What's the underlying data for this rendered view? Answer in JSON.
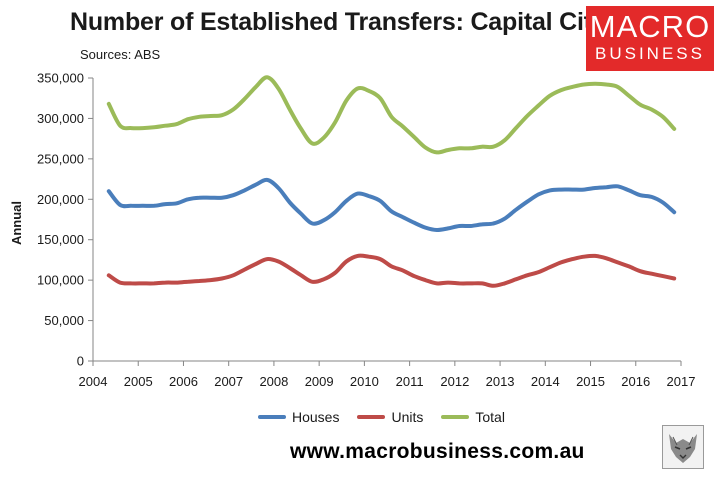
{
  "header": {
    "title": "Number of Established Transfers: Capital Cities",
    "subtitle": "Sources: ABS"
  },
  "logo": {
    "line1": "MACRO",
    "line2": "BUSINESS",
    "color": "#e32a2a"
  },
  "footer": {
    "website": "www.macrobusiness.com.au"
  },
  "chart_data": {
    "type": "line",
    "title": "Number of Established Transfers: Capital Cities",
    "subtitle": "Sources: ABS",
    "xlabel": "",
    "ylabel": "Annual",
    "xlim": [
      2004,
      2017
    ],
    "ylim": [
      0,
      350000
    ],
    "x_ticks": [
      "2004",
      "2005",
      "2006",
      "2007",
      "2008",
      "2009",
      "2010",
      "2011",
      "2012",
      "2013",
      "2014",
      "2015",
      "2016",
      "2017"
    ],
    "y_ticks": [
      "0",
      "50,000",
      "100,000",
      "150,000",
      "200,000",
      "250,000",
      "300,000",
      "350,000"
    ],
    "grid": false,
    "legend_position": "bottom",
    "series": [
      {
        "name": "Houses",
        "color": "#4a7ebb",
        "points": [
          [
            2004.35,
            210000
          ],
          [
            2004.6,
            193000
          ],
          [
            2004.85,
            192000
          ],
          [
            2005.1,
            192000
          ],
          [
            2005.35,
            192000
          ],
          [
            2005.6,
            194000
          ],
          [
            2005.85,
            195000
          ],
          [
            2006.1,
            200000
          ],
          [
            2006.35,
            202000
          ],
          [
            2006.6,
            202000
          ],
          [
            2006.85,
            202000
          ],
          [
            2007.1,
            205000
          ],
          [
            2007.35,
            211000
          ],
          [
            2007.6,
            218000
          ],
          [
            2007.85,
            224000
          ],
          [
            2008.1,
            214000
          ],
          [
            2008.35,
            196000
          ],
          [
            2008.6,
            182000
          ],
          [
            2008.85,
            170000
          ],
          [
            2009.1,
            174000
          ],
          [
            2009.35,
            184000
          ],
          [
            2009.6,
            198000
          ],
          [
            2009.85,
            207000
          ],
          [
            2010.1,
            204000
          ],
          [
            2010.35,
            198000
          ],
          [
            2010.6,
            185000
          ],
          [
            2010.85,
            178000
          ],
          [
            2011.1,
            171000
          ],
          [
            2011.35,
            165000
          ],
          [
            2011.6,
            162000
          ],
          [
            2011.85,
            164000
          ],
          [
            2012.1,
            167000
          ],
          [
            2012.35,
            167000
          ],
          [
            2012.6,
            169000
          ],
          [
            2012.85,
            170000
          ],
          [
            2013.1,
            176000
          ],
          [
            2013.35,
            187000
          ],
          [
            2013.6,
            197000
          ],
          [
            2013.85,
            206000
          ],
          [
            2014.1,
            211000
          ],
          [
            2014.35,
            212000
          ],
          [
            2014.6,
            212000
          ],
          [
            2014.85,
            212000
          ],
          [
            2015.1,
            214000
          ],
          [
            2015.35,
            215000
          ],
          [
            2015.6,
            216000
          ],
          [
            2015.85,
            211000
          ],
          [
            2016.1,
            205000
          ],
          [
            2016.35,
            203000
          ],
          [
            2016.6,
            196000
          ],
          [
            2016.85,
            184000
          ]
        ]
      },
      {
        "name": "Units",
        "color": "#be4b48",
        "points": [
          [
            2004.35,
            106000
          ],
          [
            2004.6,
            97000
          ],
          [
            2004.85,
            96000
          ],
          [
            2005.1,
            96000
          ],
          [
            2005.35,
            96000
          ],
          [
            2005.6,
            97000
          ],
          [
            2005.85,
            97000
          ],
          [
            2006.1,
            98000
          ],
          [
            2006.35,
            99000
          ],
          [
            2006.6,
            100000
          ],
          [
            2006.85,
            102000
          ],
          [
            2007.1,
            106000
          ],
          [
            2007.35,
            113000
          ],
          [
            2007.6,
            120000
          ],
          [
            2007.85,
            126000
          ],
          [
            2008.1,
            123000
          ],
          [
            2008.35,
            115000
          ],
          [
            2008.6,
            106000
          ],
          [
            2008.85,
            98000
          ],
          [
            2009.1,
            101000
          ],
          [
            2009.35,
            109000
          ],
          [
            2009.6,
            123000
          ],
          [
            2009.85,
            130000
          ],
          [
            2010.1,
            129000
          ],
          [
            2010.35,
            126000
          ],
          [
            2010.6,
            117000
          ],
          [
            2010.85,
            112000
          ],
          [
            2011.1,
            105000
          ],
          [
            2011.35,
            100000
          ],
          [
            2011.6,
            96000
          ],
          [
            2011.85,
            97000
          ],
          [
            2012.1,
            96000
          ],
          [
            2012.35,
            96000
          ],
          [
            2012.6,
            96000
          ],
          [
            2012.85,
            93000
          ],
          [
            2013.1,
            96000
          ],
          [
            2013.35,
            101000
          ],
          [
            2013.6,
            106000
          ],
          [
            2013.85,
            110000
          ],
          [
            2014.1,
            116000
          ],
          [
            2014.35,
            122000
          ],
          [
            2014.6,
            126000
          ],
          [
            2014.85,
            129000
          ],
          [
            2015.1,
            130000
          ],
          [
            2015.35,
            127000
          ],
          [
            2015.6,
            122000
          ],
          [
            2015.85,
            117000
          ],
          [
            2016.1,
            111000
          ],
          [
            2016.35,
            108000
          ],
          [
            2016.6,
            105000
          ],
          [
            2016.85,
            102000
          ]
        ]
      },
      {
        "name": "Total",
        "color": "#9bbb59",
        "points": [
          [
            2004.35,
            318000
          ],
          [
            2004.6,
            291000
          ],
          [
            2004.85,
            288000
          ],
          [
            2005.1,
            288000
          ],
          [
            2005.35,
            289000
          ],
          [
            2005.6,
            291000
          ],
          [
            2005.85,
            293000
          ],
          [
            2006.1,
            299000
          ],
          [
            2006.35,
            302000
          ],
          [
            2006.6,
            303000
          ],
          [
            2006.85,
            304000
          ],
          [
            2007.1,
            311000
          ],
          [
            2007.35,
            324000
          ],
          [
            2007.6,
            339000
          ],
          [
            2007.85,
            351000
          ],
          [
            2008.1,
            337000
          ],
          [
            2008.35,
            311000
          ],
          [
            2008.6,
            287000
          ],
          [
            2008.85,
            269000
          ],
          [
            2009.1,
            276000
          ],
          [
            2009.35,
            295000
          ],
          [
            2009.6,
            322000
          ],
          [
            2009.85,
            337000
          ],
          [
            2010.1,
            334000
          ],
          [
            2010.35,
            325000
          ],
          [
            2010.6,
            302000
          ],
          [
            2010.85,
            290000
          ],
          [
            2011.1,
            277000
          ],
          [
            2011.35,
            264000
          ],
          [
            2011.6,
            258000
          ],
          [
            2011.85,
            261000
          ],
          [
            2012.1,
            263000
          ],
          [
            2012.35,
            263000
          ],
          [
            2012.6,
            265000
          ],
          [
            2012.85,
            265000
          ],
          [
            2013.1,
            273000
          ],
          [
            2013.35,
            288000
          ],
          [
            2013.6,
            303000
          ],
          [
            2013.85,
            316000
          ],
          [
            2014.1,
            328000
          ],
          [
            2014.35,
            335000
          ],
          [
            2014.6,
            339000
          ],
          [
            2014.85,
            342000
          ],
          [
            2015.1,
            343000
          ],
          [
            2015.35,
            342000
          ],
          [
            2015.6,
            339000
          ],
          [
            2015.85,
            328000
          ],
          [
            2016.1,
            317000
          ],
          [
            2016.35,
            311000
          ],
          [
            2016.6,
            302000
          ],
          [
            2016.85,
            287000
          ]
        ]
      }
    ]
  }
}
